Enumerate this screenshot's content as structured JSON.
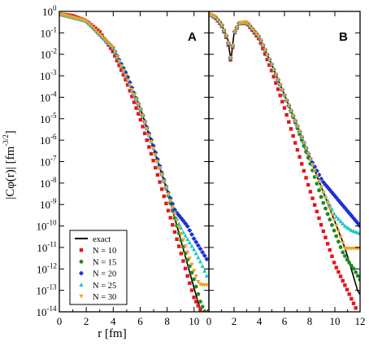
{
  "chart_data": {
    "type": "scatter",
    "y_scale": "log",
    "ylim": [
      1e-14,
      1
    ],
    "ylabel": "|Cφ(r)|  [fm",
    "ylabel_unit_exp": "-3/2",
    "ylabel_close": "]",
    "xlabel": "r   [fm]",
    "y_ticks": [
      {
        "base": "10",
        "exp": "0",
        "v": 0
      },
      {
        "base": "10",
        "exp": "-1",
        "v": -1
      },
      {
        "base": "10",
        "exp": "-2",
        "v": -2
      },
      {
        "base": "10",
        "exp": "-3",
        "v": -3
      },
      {
        "base": "10",
        "exp": "-4",
        "v": -4
      },
      {
        "base": "10",
        "exp": "-5",
        "v": -5
      },
      {
        "base": "10",
        "exp": "-6",
        "v": -6
      },
      {
        "base": "10",
        "exp": "-7",
        "v": -7
      },
      {
        "base": "10",
        "exp": "-8",
        "v": -8
      },
      {
        "base": "10",
        "exp": "-9",
        "v": -9
      },
      {
        "base": "10",
        "exp": "-10",
        "v": -10
      },
      {
        "base": "10",
        "exp": "-11",
        "v": -11
      },
      {
        "base": "10",
        "exp": "-12",
        "v": -12
      },
      {
        "base": "10",
        "exp": "-13",
        "v": -13
      },
      {
        "base": "10",
        "exp": "-14",
        "v": -14
      }
    ],
    "legend": {
      "placement": "bottom-left of panel A",
      "entries": [
        {
          "label": "exact",
          "marker": "line",
          "color": "#000000"
        },
        {
          "label": "N = 10",
          "marker": "square",
          "color": "#e8141c"
        },
        {
          "label": "N = 15",
          "marker": "circle",
          "color": "#1f8a1f"
        },
        {
          "label": "N = 20",
          "marker": "diamond",
          "color": "#1c2fd4"
        },
        {
          "label": "N = 25",
          "marker": "triangle-up",
          "color": "#1ec8c8"
        },
        {
          "label": "N = 30",
          "marker": "triangle-down",
          "color": "#f2a21e"
        }
      ]
    },
    "panels": [
      {
        "label": "A",
        "xlim": [
          0,
          11.1
        ],
        "x_ticks": [
          "0",
          "2",
          "4",
          "6",
          "8",
          "10"
        ],
        "series": [
          {
            "name": "exact",
            "color": "#000000",
            "points": [
              [
                0,
                -0.12
              ],
              [
                2,
                -0.44
              ],
              [
                4,
                -1.7
              ],
              [
                6,
                -4.5
              ],
              [
                8,
                -8.35
              ],
              [
                10,
                -12.9
              ],
              [
                10.5,
                -14
              ]
            ]
          },
          {
            "name": "N = 10",
            "color": "#e8141c",
            "points": [
              [
                0,
                -0.12
              ],
              [
                1,
                -0.2
              ],
              [
                2,
                -0.44
              ],
              [
                3,
                -0.95
              ],
              [
                4,
                -1.9
              ],
              [
                5,
                -3.3
              ],
              [
                6,
                -5.0
              ],
              [
                7,
                -7.0
              ],
              [
                8,
                -9.1
              ],
              [
                9,
                -11.2
              ],
              [
                9.5,
                -12.3
              ],
              [
                10,
                -13.35
              ],
              [
                10.55,
                -14
              ]
            ]
          },
          {
            "name": "N = 15",
            "color": "#1f8a1f",
            "points": [
              [
                0,
                -0.12
              ],
              [
                2,
                -0.44
              ],
              [
                4,
                -1.72
              ],
              [
                5,
                -2.95
              ],
              [
                6,
                -4.55
              ],
              [
                7,
                -6.35
              ],
              [
                8,
                -8.4
              ],
              [
                9,
                -10.6
              ],
              [
                10,
                -12.5
              ],
              [
                10.5,
                -13.6
              ],
              [
                10.8,
                -14
              ]
            ]
          },
          {
            "name": "N = 20",
            "color": "#1c2fd4",
            "points": [
              [
                0,
                -0.12
              ],
              [
                2,
                -0.44
              ],
              [
                4,
                -1.72
              ],
              [
                5,
                -2.95
              ],
              [
                6,
                -4.5
              ],
              [
                7,
                -6.3
              ],
              [
                8,
                -8.3
              ],
              [
                8.6,
                -9.3
              ],
              [
                9,
                -9.6
              ],
              [
                9.5,
                -10.0
              ],
              [
                10,
                -10.6
              ],
              [
                10.5,
                -11.1
              ],
              [
                11,
                -11.6
              ]
            ]
          },
          {
            "name": "N = 25",
            "color": "#1ec8c8",
            "points": [
              [
                0,
                -0.12
              ],
              [
                2,
                -0.44
              ],
              [
                4,
                -1.72
              ],
              [
                6,
                -4.5
              ],
              [
                8,
                -8.35
              ],
              [
                8.8,
                -9.8
              ],
              [
                9.2,
                -10.3
              ],
              [
                9.7,
                -10.8
              ],
              [
                10,
                -11.1
              ],
              [
                10.5,
                -11.7
              ],
              [
                11,
                -12.4
              ]
            ]
          },
          {
            "name": "N = 30",
            "color": "#f2a21e",
            "points": [
              [
                0,
                -0.12
              ],
              [
                2,
                -0.44
              ],
              [
                4,
                -1.7
              ],
              [
                6,
                -4.5
              ],
              [
                8,
                -8.35
              ],
              [
                9,
                -10.3
              ],
              [
                10,
                -12.1
              ],
              [
                10.3,
                -12.6
              ],
              [
                10.5,
                -12.75
              ],
              [
                11,
                -12.75
              ]
            ]
          }
        ]
      },
      {
        "label": "B",
        "xlim": [
          0,
          12
        ],
        "x_ticks": [
          "0",
          "2",
          "4",
          "6",
          "8",
          "10",
          "12"
        ],
        "series": [
          {
            "name": "exact",
            "color": "#000000",
            "points": [
              [
                0,
                -0.12
              ],
              [
                0.5,
                -0.25
              ],
              [
                1,
                -0.6
              ],
              [
                1.5,
                -1.3
              ],
              [
                1.75,
                -2.3
              ],
              [
                2,
                -1.0
              ],
              [
                2.4,
                -0.55
              ],
              [
                3,
                -0.5
              ],
              [
                4,
                -1.2
              ],
              [
                5,
                -2.5
              ],
              [
                6,
                -3.9
              ],
              [
                7,
                -5.3
              ],
              [
                8,
                -6.8
              ],
              [
                9,
                -8.3
              ],
              [
                10,
                -9.8
              ],
              [
                10.6,
                -10.7
              ],
              [
                11,
                -11.4
              ],
              [
                11.4,
                -12.2
              ],
              [
                11.8,
                -13.0
              ],
              [
                12,
                -13.2
              ]
            ]
          },
          {
            "name": "N = 10",
            "color": "#e8141c",
            "points": [
              [
                0,
                -0.12
              ],
              [
                0.5,
                -0.3
              ],
              [
                1,
                -0.65
              ],
              [
                1.5,
                -1.4
              ],
              [
                1.75,
                -2.4
              ],
              [
                2,
                -1.05
              ],
              [
                2.4,
                -0.57
              ],
              [
                3,
                -0.55
              ],
              [
                4,
                -1.3
              ],
              [
                5,
                -2.8
              ],
              [
                6,
                -4.5
              ],
              [
                7,
                -6.4
              ],
              [
                8,
                -8.3
              ],
              [
                9,
                -10.1
              ],
              [
                10,
                -11.8
              ],
              [
                11,
                -13.0
              ],
              [
                11.8,
                -14
              ]
            ]
          },
          {
            "name": "N = 15",
            "color": "#1f8a1f",
            "points": [
              [
                0,
                -0.12
              ],
              [
                0.5,
                -0.26
              ],
              [
                1,
                -0.62
              ],
              [
                1.5,
                -1.35
              ],
              [
                1.75,
                -2.35
              ],
              [
                2,
                -1.0
              ],
              [
                2.4,
                -0.55
              ],
              [
                3,
                -0.5
              ],
              [
                4,
                -1.2
              ],
              [
                5,
                -2.5
              ],
              [
                6,
                -3.9
              ],
              [
                7,
                -5.4
              ],
              [
                8,
                -7.0
              ],
              [
                9,
                -8.8
              ],
              [
                10,
                -10.3
              ],
              [
                10.6,
                -11.2
              ],
              [
                11,
                -11.6
              ],
              [
                11.5,
                -12.0
              ],
              [
                12,
                -12.5
              ]
            ]
          },
          {
            "name": "N = 20",
            "color": "#1c2fd4",
            "points": [
              [
                0,
                -0.12
              ],
              [
                0.5,
                -0.25
              ],
              [
                1,
                -0.6
              ],
              [
                1.5,
                -1.3
              ],
              [
                1.75,
                -2.3
              ],
              [
                2,
                -1.0
              ],
              [
                2.4,
                -0.55
              ],
              [
                3,
                -0.5
              ],
              [
                4,
                -1.2
              ],
              [
                5,
                -2.5
              ],
              [
                6,
                -3.9
              ],
              [
                7,
                -5.3
              ],
              [
                8,
                -6.8
              ],
              [
                9,
                -7.9
              ],
              [
                10,
                -8.6
              ],
              [
                11,
                -9.3
              ],
              [
                12,
                -10.0
              ]
            ]
          },
          {
            "name": "N = 25",
            "color": "#1ec8c8",
            "points": [
              [
                0,
                -0.12
              ],
              [
                0.5,
                -0.25
              ],
              [
                1,
                -0.6
              ],
              [
                1.5,
                -1.3
              ],
              [
                1.75,
                -2.3
              ],
              [
                2,
                -1.0
              ],
              [
                2.4,
                -0.55
              ],
              [
                3,
                -0.5
              ],
              [
                4,
                -1.2
              ],
              [
                5,
                -2.5
              ],
              [
                6,
                -3.9
              ],
              [
                7,
                -5.3
              ],
              [
                8,
                -6.8
              ],
              [
                9,
                -8.3
              ],
              [
                10,
                -9.5
              ],
              [
                10.8,
                -10.0
              ],
              [
                11.3,
                -10.2
              ],
              [
                12,
                -10.35
              ]
            ]
          },
          {
            "name": "N = 30",
            "color": "#f2a21e",
            "points": [
              [
                0,
                -0.12
              ],
              [
                0.5,
                -0.25
              ],
              [
                1,
                -0.6
              ],
              [
                1.5,
                -1.3
              ],
              [
                1.75,
                -2.3
              ],
              [
                2,
                -1.0
              ],
              [
                2.4,
                -0.55
              ],
              [
                3,
                -0.5
              ],
              [
                4,
                -1.2
              ],
              [
                5,
                -2.5
              ],
              [
                6,
                -3.9
              ],
              [
                7,
                -5.3
              ],
              [
                8,
                -6.8
              ],
              [
                9,
                -8.3
              ],
              [
                10,
                -9.8
              ],
              [
                10.5,
                -10.6
              ],
              [
                10.8,
                -11.05
              ],
              [
                11.2,
                -11.05
              ],
              [
                12,
                -11.05
              ]
            ]
          }
        ]
      }
    ]
  }
}
